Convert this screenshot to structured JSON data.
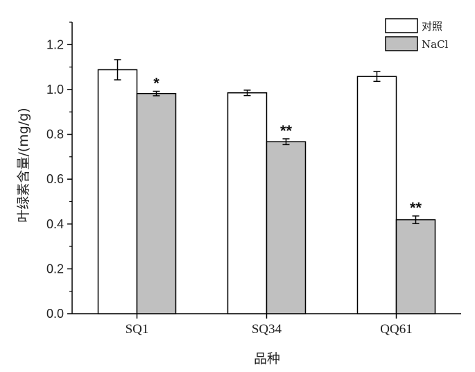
{
  "chart_data": {
    "type": "bar",
    "xlabel": "品种",
    "ylabel": "叶绿素含量/(mg/g)",
    "categories": [
      "SQ1",
      "SQ34",
      "QQ61"
    ],
    "ylim": [
      0,
      1.3
    ],
    "yticks": [
      "0.0",
      "0.2",
      "0.4",
      "0.6",
      "0.8",
      "1.0",
      "1.2"
    ],
    "series": [
      {
        "name": "对照",
        "values": [
          1.088,
          0.985,
          1.058
        ],
        "errors": [
          0.045,
          0.012,
          0.022
        ],
        "significance": [
          "",
          "",
          ""
        ],
        "color": "#ffffff"
      },
      {
        "name": "NaCl",
        "values": [
          0.982,
          0.767,
          0.419
        ],
        "errors": [
          0.01,
          0.013,
          0.017
        ],
        "significance": [
          "*",
          "**",
          "**"
        ],
        "color": "#c0c0c0"
      }
    ],
    "legend": "top-right",
    "grid": false
  }
}
